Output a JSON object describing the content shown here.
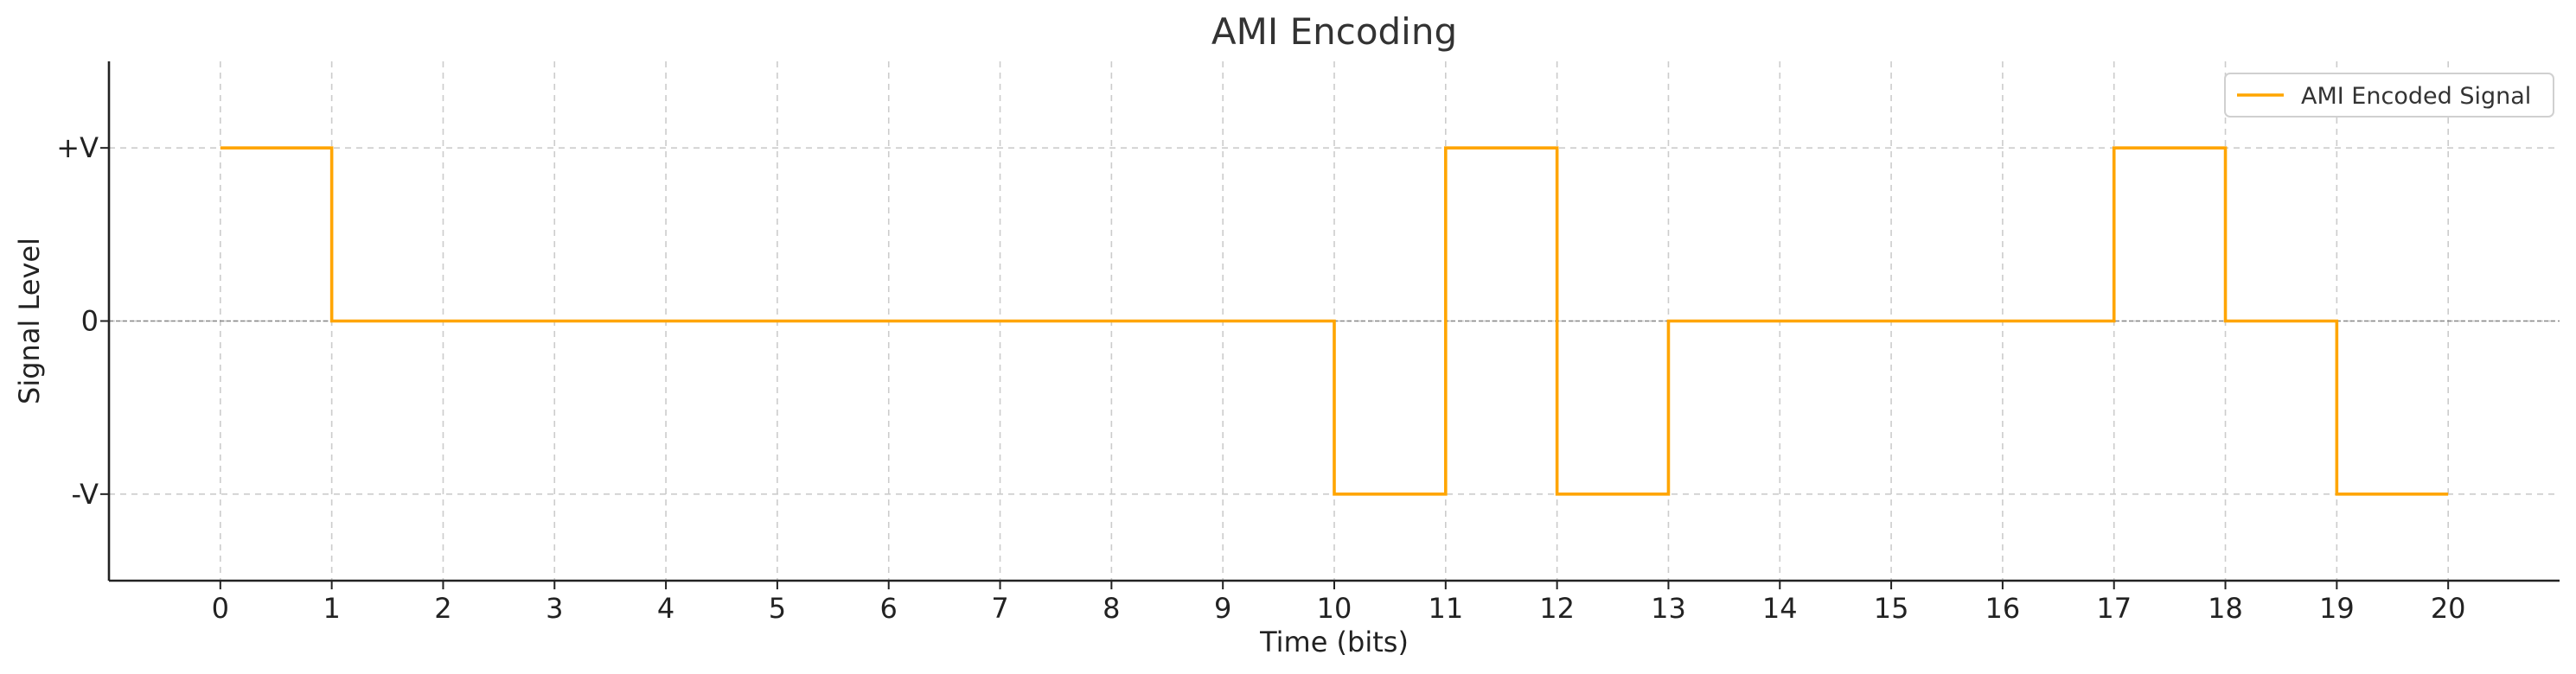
{
  "chart_data": {
    "type": "line",
    "step": "post",
    "title": "AMI Encoding",
    "xlabel": "Time (bits)",
    "ylabel": "Signal Level",
    "xlim": [
      -1,
      21
    ],
    "ylim": [
      -1.5,
      1.5
    ],
    "x_ticks": [
      0,
      1,
      2,
      3,
      4,
      5,
      6,
      7,
      8,
      9,
      10,
      11,
      12,
      13,
      14,
      15,
      16,
      17,
      18,
      19,
      20
    ],
    "y_ticks": [
      {
        "value": -1,
        "label": "-V"
      },
      {
        "value": 0,
        "label": "0"
      },
      {
        "value": 1,
        "label": "+V"
      }
    ],
    "grid": true,
    "zero_line": true,
    "legend": {
      "position": "top-right"
    },
    "series": [
      {
        "name": "AMI Encoded Signal",
        "color": "#FFA500",
        "x": [
          0,
          1,
          2,
          3,
          4,
          5,
          6,
          7,
          8,
          9,
          10,
          11,
          12,
          13,
          14,
          15,
          16,
          17,
          18,
          19,
          20
        ],
        "y": [
          1,
          0,
          0,
          0,
          0,
          0,
          0,
          0,
          0,
          0,
          -1,
          1,
          -1,
          0,
          0,
          0,
          0,
          1,
          0,
          -1,
          -1
        ]
      }
    ]
  }
}
